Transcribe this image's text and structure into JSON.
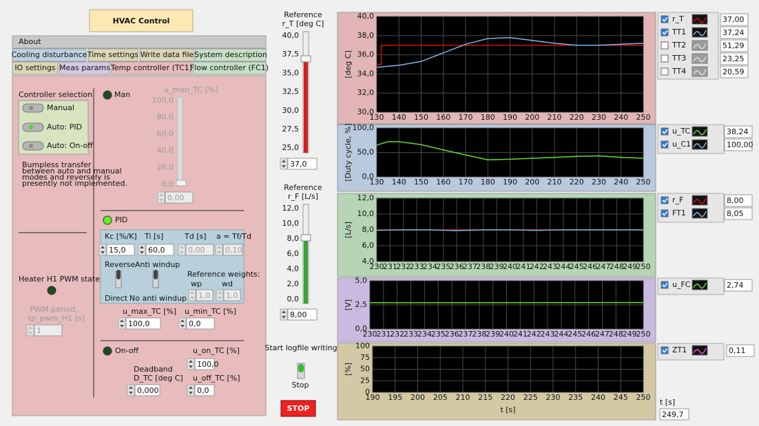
{
  "title": "HVAC Control",
  "tabs": [
    "About",
    "Cooling disturbance",
    "Time settings",
    "Write data file",
    "System description",
    "IO settings",
    "Meas params",
    "Temp controller (TC1)",
    "Flow controller (FC1)"
  ],
  "controller": {
    "label": "Controller selection",
    "options": [
      "Manual",
      "Auto: PID",
      "Auto: On-off"
    ],
    "note": [
      "Bumpless transfer",
      "between auto and manual",
      "modes and reversely is",
      "presently not implemented."
    ]
  },
  "heater": {
    "label": "Heater H1 PWM state",
    "period_label": [
      "PWM period,",
      "tp_pwm_H1 [s]"
    ],
    "period": "1"
  },
  "manual": {
    "label": "Man",
    "u_man_label": "u_man_TC [%]",
    "u_man_scale": [
      "100,0",
      "80,0",
      "60,0",
      "40,0",
      "20,0",
      "0,0"
    ],
    "u_man": "0,00"
  },
  "pid": {
    "label": "PID",
    "kc_label": "Kc [%/K]",
    "kc": "15,0",
    "ti_label": "Ti [s]",
    "ti": "60,0",
    "td_label": "Td [s]",
    "td": "0,00",
    "a_label": "a = Tf/Td",
    "a": "0,10",
    "reverse": "Reverse",
    "direct": "Direct",
    "anti_windup": "Anti windup",
    "no_anti_windup": "No anti windup",
    "weights_label": "Reference weights:",
    "wp_label": "wp",
    "wp": "1,0",
    "wd_label": "wd",
    "wd": "1,0",
    "u_max_label": "u_max_TC [%]",
    "u_max": "100,0",
    "u_min_label": "u_min_TC [%]",
    "u_min": "0,0"
  },
  "onoff": {
    "label": "On-off",
    "u_on_label": "u_on_TC [%]",
    "u_on": "100,0",
    "deadband_label": [
      "Deadband",
      "D_TC [deg C]"
    ],
    "deadband": "0,000",
    "u_off_label": "u_off_TC [%]",
    "u_off": "0,0"
  },
  "ref_T": {
    "label": [
      "Reference",
      "r_T [deg C]"
    ],
    "scale": [
      "40,0",
      "37,5",
      "35,0",
      "32,5",
      "30,0",
      "27,5",
      "25,0"
    ],
    "value": "37,0"
  },
  "ref_F": {
    "label": [
      "Reference",
      "r_F [L/s]"
    ],
    "scale": [
      "12,0",
      "10,0",
      "8,0",
      "6,0",
      "4,0",
      "2,0",
      "0,0"
    ],
    "value": "8,00"
  },
  "logfile": {
    "label": "Start logfile writing",
    "state": "Stop"
  },
  "stop_button": "STOP",
  "time": {
    "label": "t [s]",
    "value": "249,7"
  },
  "plots": [
    {
      "ylabel": "[deg C]",
      "xlim": [
        130,
        250
      ],
      "ylim": [
        30,
        40
      ],
      "xticks": [
        130,
        140,
        150,
        160,
        170,
        180,
        190,
        200,
        210,
        220,
        230,
        240,
        250
      ],
      "yticks": [
        {
          "value": 30,
          "label": "30,0"
        },
        {
          "value": 32,
          "label": "32,0"
        },
        {
          "value": 34,
          "label": "34,0"
        },
        {
          "value": 36,
          "label": "36,0"
        },
        {
          "value": 38,
          "label": "38,0"
        },
        {
          "value": 40,
          "label": "40,0"
        }
      ],
      "series": [
        {
          "name": "r_T",
          "color": "#d01010",
          "checked": true,
          "value": "37,00",
          "x": [
            130,
            132,
            132,
            250
          ],
          "values": [
            35,
            35,
            37,
            37
          ]
        },
        {
          "name": "TT1",
          "color": "#7ab8ea",
          "checked": true,
          "value": "37,24",
          "x": [
            130,
            140,
            150,
            160,
            170,
            180,
            190,
            200,
            210,
            220,
            230,
            240,
            250
          ],
          "values": [
            34.7,
            34.9,
            35.3,
            36.2,
            37.1,
            37.7,
            37.8,
            37.5,
            37.2,
            37.0,
            37.0,
            37.1,
            37.2
          ]
        },
        {
          "name": "TT2",
          "color": "#9a9a9a",
          "checked": false,
          "value": "51,29"
        },
        {
          "name": "TT3",
          "color": "#9a9a9a",
          "checked": false,
          "value": "23,25"
        },
        {
          "name": "TT4",
          "color": "#9a9a9a",
          "checked": false,
          "value": "20,59"
        }
      ]
    },
    {
      "ylabel": "[Duty cycle, %]",
      "xlim": [
        130,
        250
      ],
      "ylim": [
        0,
        100
      ],
      "xticks": [
        130,
        140,
        150,
        160,
        170,
        180,
        190,
        200,
        210,
        220,
        230,
        240,
        250
      ],
      "yticks": [
        {
          "value": 0,
          "label": "0,0"
        },
        {
          "value": 50,
          "label": "50,0"
        },
        {
          "value": 100,
          "label": "100,0"
        }
      ],
      "series": [
        {
          "name": "u_TC",
          "color": "#66dd33",
          "checked": true,
          "value": "38,24",
          "x": [
            130,
            135,
            140,
            150,
            160,
            170,
            180,
            190,
            200,
            210,
            220,
            230,
            240,
            250
          ],
          "values": [
            65,
            72,
            72,
            66,
            55,
            45,
            35,
            36,
            38,
            40,
            42,
            43,
            40,
            38
          ]
        },
        {
          "name": "u_C1",
          "color": "#7ab8ea",
          "checked": true,
          "value": "100,00"
        }
      ]
    },
    {
      "ylabel": "[L/s]",
      "xlim": [
        230,
        250
      ],
      "ylim": [
        4,
        12
      ],
      "xticks": [
        230,
        231,
        232,
        233,
        234,
        235,
        236,
        237,
        238,
        239,
        240,
        241,
        242,
        243,
        244,
        245,
        246,
        247,
        248,
        249,
        250
      ],
      "yticks": [
        {
          "value": 4,
          "label": "4,0"
        },
        {
          "value": 6,
          "label": "6,0"
        },
        {
          "value": 8,
          "label": "8,0"
        },
        {
          "value": 10,
          "label": "10,0"
        },
        {
          "value": 12,
          "label": "12,0"
        }
      ],
      "series": [
        {
          "name": "r_F",
          "color": "#d01010",
          "checked": true,
          "value": "8,00",
          "x": [
            230,
            250
          ],
          "values": [
            8,
            8
          ]
        },
        {
          "name": "FT1",
          "color": "#7ab8ea",
          "checked": true,
          "value": "8,05",
          "x": [
            230,
            232,
            234,
            236,
            238,
            240,
            242,
            244,
            246,
            248,
            250
          ],
          "values": [
            7.95,
            8.0,
            8.0,
            7.9,
            8.0,
            8.0,
            7.95,
            8.0,
            8.0,
            8.0,
            8.0
          ]
        }
      ]
    },
    {
      "ylabel": "[V]",
      "xlim": [
        230,
        250
      ],
      "ylim": [
        0,
        5
      ],
      "xticks": [
        230,
        231,
        232,
        233,
        234,
        235,
        236,
        237,
        238,
        239,
        240,
        241,
        242,
        243,
        244,
        245,
        246,
        247,
        248,
        249,
        250
      ],
      "yticks": [
        {
          "value": 0,
          "label": "0,0"
        },
        {
          "value": 2.5,
          "label": "2,5"
        },
        {
          "value": 5,
          "label": "5,0"
        }
      ],
      "series": [
        {
          "name": "u_FC",
          "color": "#66dd33",
          "checked": true,
          "value": "2,74",
          "x": [
            230,
            250
          ],
          "values": [
            2.72,
            2.74
          ]
        }
      ]
    },
    {
      "ylabel": "[%]",
      "xlabel": "t [s]",
      "xlim": [
        190,
        250
      ],
      "ylim": [
        0,
        100
      ],
      "xticks": [
        190,
        195,
        200,
        205,
        210,
        215,
        220,
        225,
        230,
        235,
        240,
        245,
        250
      ],
      "yticks": [
        0,
        25,
        50,
        75,
        100
      ],
      "series": [
        {
          "name": "ZT1",
          "color": "#e05ad0",
          "checked": true,
          "value": "0,11"
        }
      ]
    }
  ]
}
